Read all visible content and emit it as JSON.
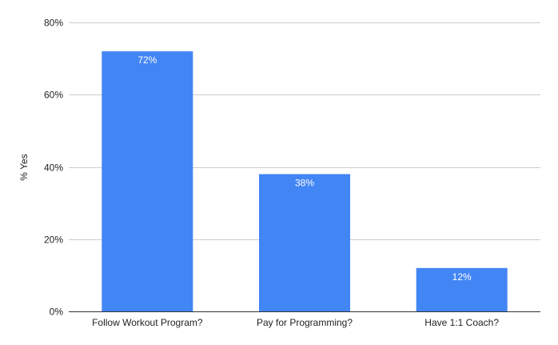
{
  "chart_data": {
    "type": "bar",
    "categories": [
      "Follow Workout Program?",
      "Pay for Programming?",
      "Have 1:1 Coach?"
    ],
    "values": [
      72,
      38,
      12
    ],
    "data_labels": [
      "72%",
      "38%",
      "12%"
    ],
    "ylabel": "% Yes",
    "ylim": [
      0,
      80
    ],
    "yticks": [
      0,
      20,
      40,
      60,
      80
    ],
    "ytick_labels": [
      "0%",
      "20%",
      "40%",
      "60%",
      "80%"
    ],
    "grid": true,
    "bar_color": "#4285f4"
  }
}
